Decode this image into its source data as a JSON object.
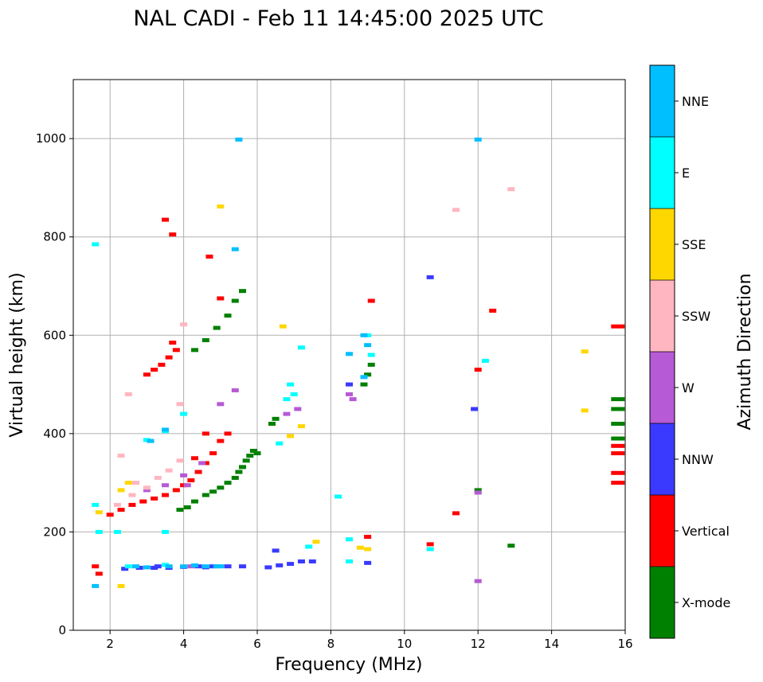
{
  "chart_data": {
    "type": "scatter",
    "title": "NAL CADI - Feb 11 14:45:00 2025 UTC",
    "xlabel": "Frequency (MHz)",
    "ylabel": "Virtual height (km)",
    "xlim": [
      1,
      16
    ],
    "ylim": [
      0,
      1120
    ],
    "xticks": [
      2,
      4,
      6,
      8,
      10,
      12,
      14,
      16
    ],
    "yticks": [
      0,
      200,
      400,
      600,
      800,
      1000
    ],
    "grid": true,
    "colorbar": {
      "label": "Azimuth Direction",
      "categories": [
        {
          "name": "X-mode",
          "color": "#008000"
        },
        {
          "name": "Vertical",
          "color": "#ff0000"
        },
        {
          "name": "NNW",
          "color": "#3a3aff"
        },
        {
          "name": "W",
          "color": "#b65ad6"
        },
        {
          "name": "SSW",
          "color": "#ffb6c1"
        },
        {
          "name": "SSE",
          "color": "#ffd700"
        },
        {
          "name": "E",
          "color": "#00ffff"
        },
        {
          "name": "NNE",
          "color": "#00bfff"
        }
      ]
    },
    "series": [
      {
        "name": "X-mode",
        "points": [
          [
            3.9,
            245
          ],
          [
            4.1,
            250
          ],
          [
            4.3,
            262
          ],
          [
            4.6,
            275
          ],
          [
            4.8,
            282
          ],
          [
            5.0,
            290
          ],
          [
            5.2,
            300
          ],
          [
            5.4,
            310
          ],
          [
            5.5,
            322
          ],
          [
            5.6,
            332
          ],
          [
            5.7,
            345
          ],
          [
            5.8,
            355
          ],
          [
            5.9,
            365
          ],
          [
            6.0,
            360
          ],
          [
            4.3,
            570
          ],
          [
            4.6,
            590
          ],
          [
            4.9,
            615
          ],
          [
            5.2,
            640
          ],
          [
            5.4,
            670
          ],
          [
            5.6,
            690
          ],
          [
            8.9,
            500
          ],
          [
            9.0,
            520
          ],
          [
            9.1,
            540
          ],
          [
            12.0,
            285
          ],
          [
            6.4,
            420
          ],
          [
            6.5,
            430
          ],
          [
            15.8,
            390
          ],
          [
            15.8,
            420
          ],
          [
            15.8,
            450
          ],
          [
            15.8,
            470
          ],
          [
            12.9,
            172
          ]
        ]
      },
      {
        "name": "Vertical",
        "points": [
          [
            2.0,
            235
          ],
          [
            2.3,
            245
          ],
          [
            2.6,
            255
          ],
          [
            2.9,
            262
          ],
          [
            3.2,
            268
          ],
          [
            3.5,
            275
          ],
          [
            3.8,
            285
          ],
          [
            4.0,
            295
          ],
          [
            4.2,
            305
          ],
          [
            4.4,
            322
          ],
          [
            4.6,
            340
          ],
          [
            4.8,
            360
          ],
          [
            5.0,
            385
          ],
          [
            5.2,
            400
          ],
          [
            3.0,
            520
          ],
          [
            3.2,
            530
          ],
          [
            3.4,
            540
          ],
          [
            3.6,
            555
          ],
          [
            3.8,
            570
          ],
          [
            3.7,
            585
          ],
          [
            3.5,
            835
          ],
          [
            3.7,
            805
          ],
          [
            4.7,
            760
          ],
          [
            5.0,
            675
          ],
          [
            9.1,
            670
          ],
          [
            12.4,
            650
          ],
          [
            11.4,
            238
          ],
          [
            10.7,
            175
          ],
          [
            1.6,
            130
          ],
          [
            1.7,
            115
          ],
          [
            9.0,
            190
          ],
          [
            12.0,
            530
          ],
          [
            15.8,
            300
          ],
          [
            15.8,
            320
          ],
          [
            15.8,
            360
          ],
          [
            15.8,
            375
          ],
          [
            15.8,
            618
          ],
          [
            4.3,
            350
          ],
          [
            4.6,
            400
          ]
        ]
      },
      {
        "name": "NNW",
        "points": [
          [
            2.4,
            125
          ],
          [
            2.8,
            127
          ],
          [
            3.2,
            127
          ],
          [
            3.6,
            127
          ],
          [
            4.0,
            129
          ],
          [
            4.4,
            130
          ],
          [
            4.8,
            130
          ],
          [
            5.2,
            130
          ],
          [
            5.6,
            130
          ],
          [
            6.3,
            128
          ],
          [
            6.6,
            132
          ],
          [
            6.9,
            135
          ],
          [
            7.2,
            140
          ],
          [
            7.5,
            140
          ],
          [
            6.5,
            162
          ],
          [
            9.0,
            137
          ],
          [
            10.7,
            718
          ],
          [
            11.9,
            450
          ],
          [
            8.5,
            500
          ],
          [
            3.3,
            130
          ],
          [
            4.6,
            128
          ]
        ]
      },
      {
        "name": "W",
        "points": [
          [
            3.0,
            285
          ],
          [
            3.5,
            295
          ],
          [
            4.0,
            315
          ],
          [
            4.5,
            340
          ],
          [
            5.0,
            460
          ],
          [
            5.4,
            488
          ],
          [
            6.8,
            440
          ],
          [
            7.1,
            450
          ],
          [
            8.5,
            480
          ],
          [
            8.6,
            470
          ],
          [
            4.1,
            295
          ],
          [
            12.0,
            100
          ],
          [
            12.0,
            280
          ],
          [
            4.2,
            130
          ]
        ]
      },
      {
        "name": "SSW",
        "points": [
          [
            2.2,
            255
          ],
          [
            2.6,
            275
          ],
          [
            3.0,
            290
          ],
          [
            3.3,
            310
          ],
          [
            3.6,
            325
          ],
          [
            3.9,
            345
          ],
          [
            2.5,
            480
          ],
          [
            2.3,
            355
          ],
          [
            11.4,
            855
          ],
          [
            12.9,
            897
          ],
          [
            4.0,
            622
          ],
          [
            3.9,
            460
          ],
          [
            2.7,
            300
          ]
        ]
      },
      {
        "name": "SSE",
        "points": [
          [
            1.7,
            240
          ],
          [
            2.3,
            285
          ],
          [
            2.5,
            300
          ],
          [
            6.9,
            395
          ],
          [
            7.2,
            415
          ],
          [
            6.7,
            618
          ],
          [
            5.0,
            862
          ],
          [
            14.9,
            567
          ],
          [
            14.9,
            447
          ],
          [
            8.8,
            168
          ],
          [
            9.0,
            165
          ],
          [
            7.6,
            180
          ],
          [
            2.3,
            90
          ]
        ]
      },
      {
        "name": "E",
        "points": [
          [
            1.6,
            785
          ],
          [
            1.6,
            255
          ],
          [
            1.7,
            200
          ],
          [
            2.2,
            200
          ],
          [
            3.5,
            200
          ],
          [
            3.0,
            387
          ],
          [
            3.5,
            405
          ],
          [
            4.0,
            440
          ],
          [
            6.8,
            470
          ],
          [
            7.0,
            480
          ],
          [
            7.2,
            575
          ],
          [
            6.9,
            500
          ],
          [
            8.2,
            272
          ],
          [
            8.5,
            185
          ],
          [
            8.5,
            140
          ],
          [
            9.1,
            560
          ],
          [
            9.0,
            600
          ],
          [
            12.2,
            548
          ],
          [
            10.7,
            165
          ],
          [
            6.6,
            380
          ],
          [
            7.4,
            170
          ],
          [
            2.5,
            130
          ],
          [
            3.5,
            133
          ]
        ]
      },
      {
        "name": "NNE",
        "points": [
          [
            3.6,
            130
          ],
          [
            4.0,
            130
          ],
          [
            4.3,
            132
          ],
          [
            4.6,
            130
          ],
          [
            5.0,
            130
          ],
          [
            3.5,
            408
          ],
          [
            3.1,
            385
          ],
          [
            5.4,
            775
          ],
          [
            12.0,
            998
          ],
          [
            5.5,
            998
          ],
          [
            8.5,
            562
          ],
          [
            8.9,
            600
          ],
          [
            9.0,
            580
          ],
          [
            8.9,
            515
          ],
          [
            1.6,
            90
          ],
          [
            2.7,
            130
          ],
          [
            3.0,
            128
          ],
          [
            4.9,
            130
          ]
        ]
      }
    ]
  }
}
